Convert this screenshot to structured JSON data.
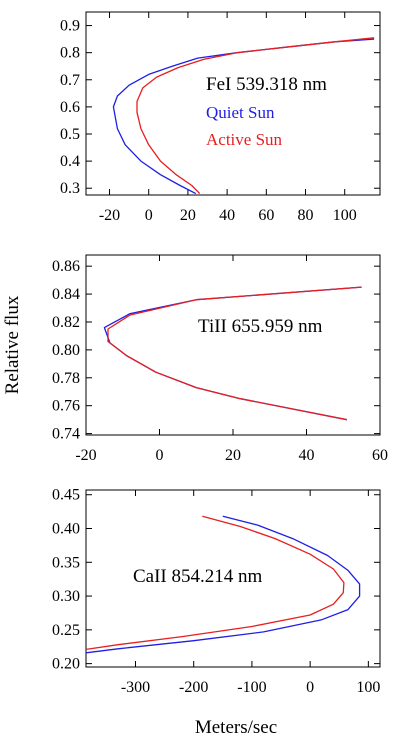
{
  "figure": {
    "ylabel": "Relative flux",
    "xlabel": "Meters/sec"
  },
  "colors": {
    "quiet": "#1f1fe6",
    "active": "#e61f1f",
    "axis": "#000000"
  },
  "chart_data": [
    {
      "type": "line",
      "title": "FeI 539.318 nm",
      "xlim": [
        -32,
        118
      ],
      "ylim": [
        0.275,
        0.95
      ],
      "xticks": [
        -20,
        0,
        20,
        40,
        60,
        80,
        100
      ],
      "yticks": [
        0.3,
        0.4,
        0.5,
        0.6,
        0.7,
        0.8,
        0.9
      ],
      "ytick_decimals": 1,
      "legend": "inside-center-right",
      "series": [
        {
          "name": "Quiet Sun",
          "color_key": "quiet",
          "x": [
            24,
            16,
            6,
            -4,
            -12,
            -16,
            -18,
            -16,
            -10,
            0,
            12,
            25,
            45,
            70,
            95,
            115
          ],
          "y": [
            0.28,
            0.31,
            0.35,
            0.4,
            0.46,
            0.52,
            0.6,
            0.64,
            0.68,
            0.72,
            0.75,
            0.78,
            0.8,
            0.82,
            0.84,
            0.85
          ]
        },
        {
          "name": "Active Sun",
          "color_key": "active",
          "x": [
            26,
            22,
            14,
            6,
            0,
            -4,
            -6,
            -6,
            -3,
            4,
            15,
            28,
            45,
            70,
            95,
            115
          ],
          "y": [
            0.28,
            0.31,
            0.35,
            0.4,
            0.46,
            0.52,
            0.58,
            0.62,
            0.67,
            0.71,
            0.745,
            0.775,
            0.8,
            0.82,
            0.84,
            0.855
          ]
        }
      ]
    },
    {
      "type": "line",
      "title": "TiII 655.959 nm",
      "xlim": [
        -20,
        60
      ],
      "ylim": [
        0.739,
        0.868
      ],
      "xticks": [
        -20,
        0,
        20,
        40,
        60
      ],
      "yticks": [
        0.74,
        0.76,
        0.78,
        0.8,
        0.82,
        0.84,
        0.86
      ],
      "ytick_decimals": 2,
      "series": [
        {
          "name": "Quiet Sun",
          "color_key": "quiet",
          "x": [
            51,
            22,
            10,
            -1,
            -9,
            -13.5,
            -15,
            -8,
            10,
            55
          ],
          "y": [
            0.75,
            0.765,
            0.773,
            0.784,
            0.796,
            0.805,
            0.816,
            0.826,
            0.836,
            0.845
          ]
        },
        {
          "name": "Active Sun",
          "color_key": "active",
          "x": [
            51,
            22,
            10,
            -1,
            -9,
            -14,
            -14,
            -8,
            10,
            55
          ],
          "y": [
            0.75,
            0.765,
            0.773,
            0.784,
            0.796,
            0.806,
            0.815,
            0.825,
            0.836,
            0.845
          ]
        }
      ]
    },
    {
      "type": "line",
      "title": "CaII 854.214 nm",
      "xlim": [
        -385,
        120
      ],
      "ylim": [
        0.195,
        0.457
      ],
      "xticks": [
        -300,
        -200,
        -100,
        0,
        100
      ],
      "yticks": [
        0.2,
        0.25,
        0.3,
        0.35,
        0.4,
        0.45
      ],
      "ytick_decimals": 2,
      "series": [
        {
          "name": "Quiet Sun",
          "color_key": "quiet",
          "x": [
            -150,
            -90,
            -30,
            30,
            65,
            85,
            85,
            65,
            20,
            -80,
            -200,
            -330,
            -385
          ],
          "y": [
            0.418,
            0.405,
            0.385,
            0.36,
            0.338,
            0.318,
            0.3,
            0.28,
            0.265,
            0.247,
            0.234,
            0.222,
            0.216
          ]
        },
        {
          "name": "Active Sun",
          "color_key": "active",
          "x": [
            -185,
            -120,
            -60,
            0,
            40,
            58,
            57,
            40,
            0,
            -100,
            -220,
            -330,
            -385
          ],
          "y": [
            0.418,
            0.403,
            0.385,
            0.362,
            0.34,
            0.32,
            0.305,
            0.288,
            0.272,
            0.255,
            0.24,
            0.228,
            0.221
          ]
        }
      ]
    }
  ]
}
